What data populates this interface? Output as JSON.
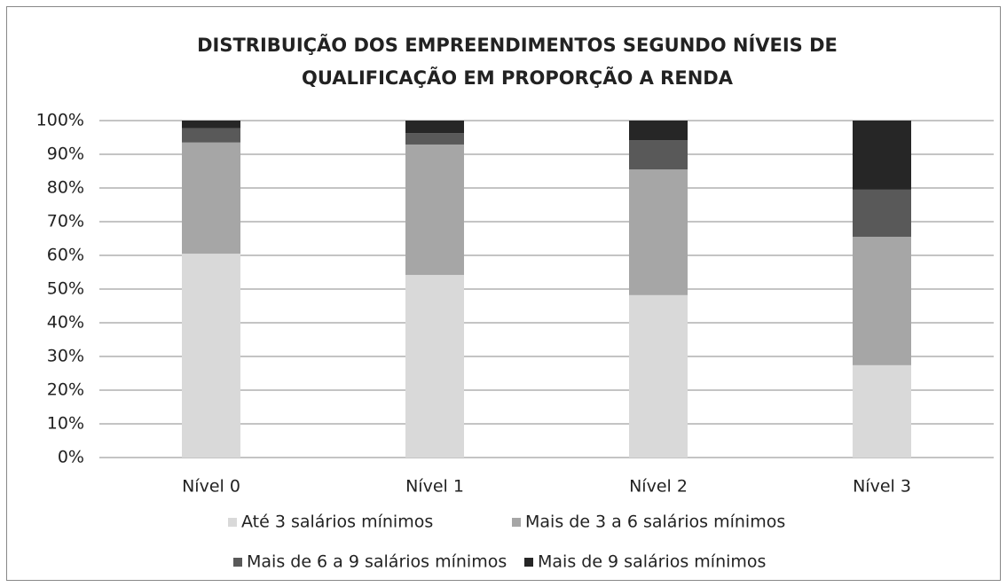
{
  "chart_data": {
    "type": "stacked_bar",
    "title": [
      "DISTRIBUIÇÃO DOS EMPREENDIMENTOS SEGUNDO NÍVEIS DE",
      "QUALIFICAÇÃO EM PROPORÇÃO A RENDA"
    ],
    "categories": [
      "Nível 0",
      "Nível 1",
      "Nível 2",
      "Nível 3"
    ],
    "series": [
      {
        "name": "Até 3 salários mínimos",
        "color": "#d9d9d9",
        "values": [
          60.5,
          54.2,
          48.2,
          27.4
        ]
      },
      {
        "name": "Mais de 3 a 6 salários mínimos",
        "color": "#a6a6a6",
        "values": [
          33,
          38.7,
          37.3,
          38.1
        ]
      },
      {
        "name": "Mais de 6 a 9 salários mínimos",
        "color": "#595959",
        "values": [
          4.2,
          3.4,
          8.7,
          14
        ]
      },
      {
        "name": "Mais de 9 salários mínimos",
        "color": "#262626",
        "values": [
          2.3,
          3.7,
          5.8,
          20.5
        ]
      }
    ],
    "ylim": [
      0,
      100
    ],
    "yticks": [
      {
        "value": 0,
        "label": "0%"
      },
      {
        "value": 10,
        "label": "10%"
      },
      {
        "value": 20,
        "label": "20%"
      },
      {
        "value": 30,
        "label": "30%"
      },
      {
        "value": 40,
        "label": "40%"
      },
      {
        "value": 50,
        "label": "50%"
      },
      {
        "value": 60,
        "label": "60%"
      },
      {
        "value": 70,
        "label": "70%"
      },
      {
        "value": 80,
        "label": "80%"
      },
      {
        "value": 90,
        "label": "90%"
      },
      {
        "value": 100,
        "label": "100%"
      }
    ],
    "grid": true,
    "legend": "bottom"
  }
}
